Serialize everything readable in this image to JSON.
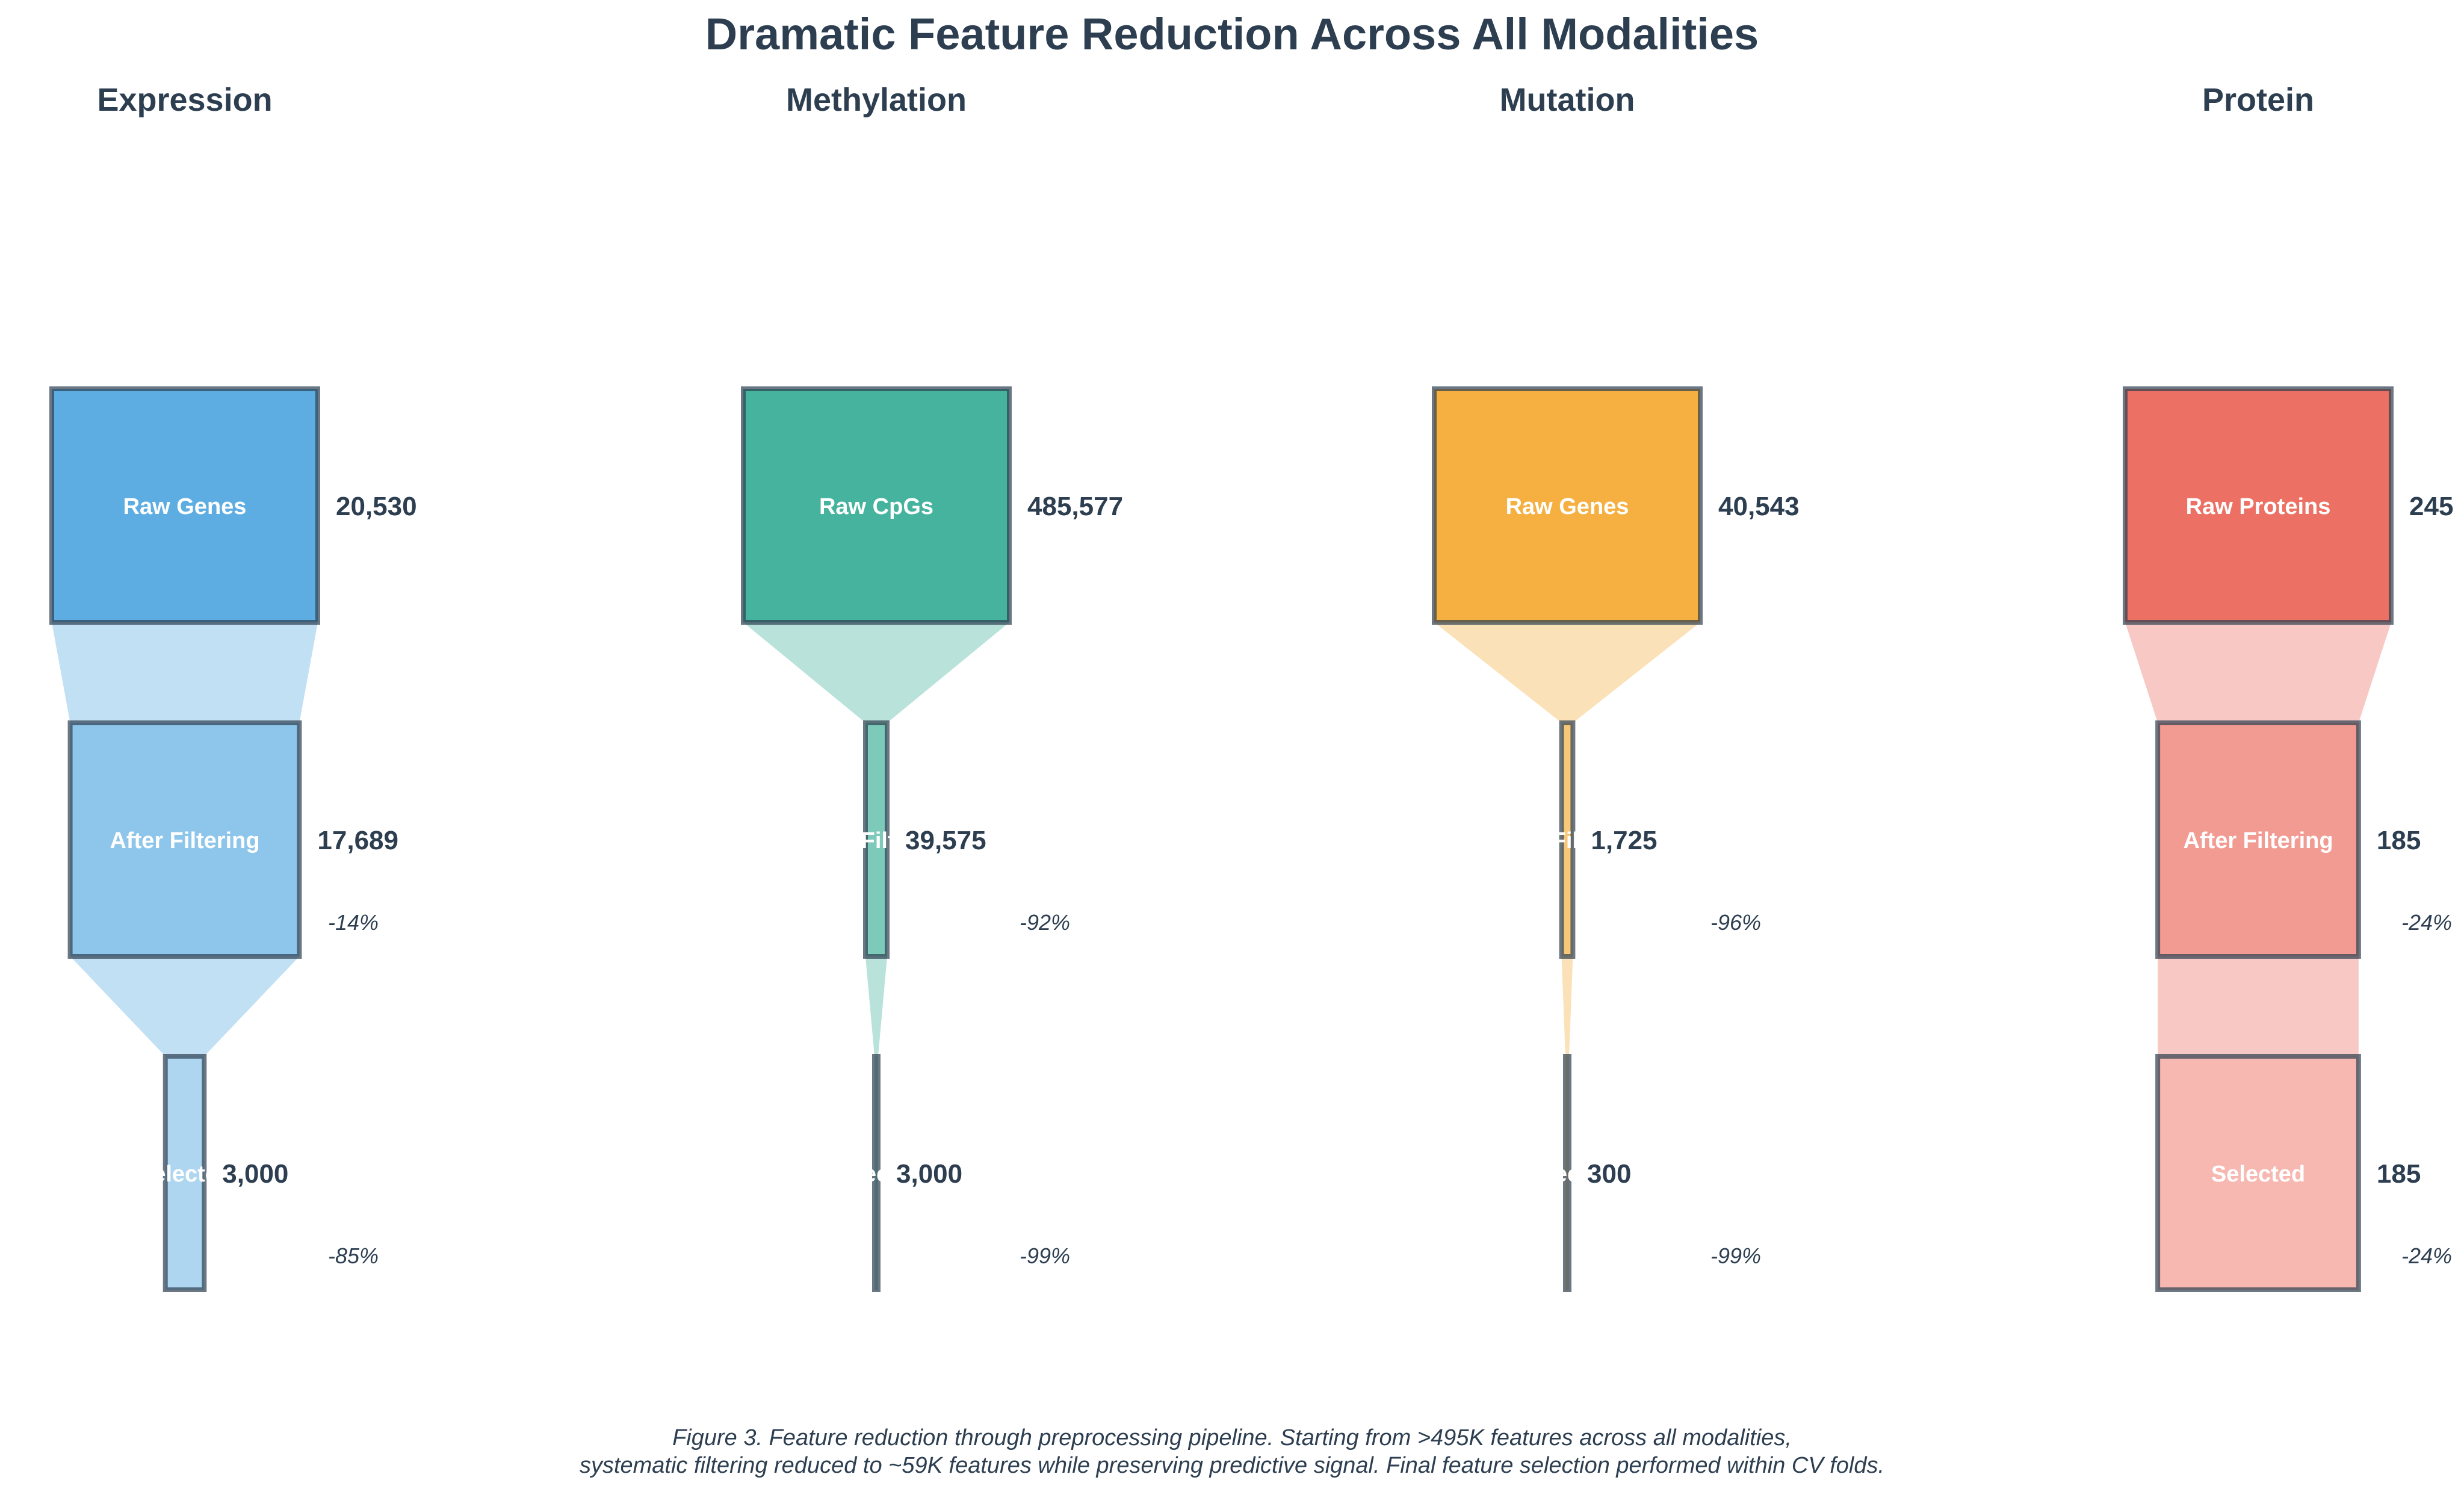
{
  "title": "Dramatic Feature Reduction Across All Modalities",
  "caption": {
    "line1": "Figure 3. Feature reduction through preprocessing pipeline. Starting from >495K features across all modalities,",
    "line2": "systematic filtering reduced to ~59K features while preserving predictive signal. Final feature selection performed within CV folds."
  },
  "chart_data": [
    {
      "type": "funnel",
      "title": "Expression",
      "color": "#5dade2",
      "stages": [
        "Raw Genes",
        "After Filtering",
        "Selected"
      ],
      "values": [
        20530,
        17689,
        3000
      ],
      "value_labels": [
        "20,530",
        "17,689",
        "3,000"
      ],
      "reduction_labels": [
        "-14%",
        "-85%"
      ]
    },
    {
      "type": "funnel",
      "title": "Methylation",
      "color": "#45b39d",
      "stages": [
        "Raw CpGs",
        "After Filtering",
        "Selected"
      ],
      "values": [
        485577,
        39575,
        3000
      ],
      "value_labels": [
        "485,577",
        "39,575",
        "3,000"
      ],
      "reduction_labels": [
        "-92%",
        "-99%"
      ]
    },
    {
      "type": "funnel",
      "title": "Mutation",
      "color": "#f5b041",
      "stages": [
        "Raw Genes",
        "After Filtering",
        "Selected"
      ],
      "values": [
        40543,
        1725,
        300
      ],
      "value_labels": [
        "40,543",
        "1,725",
        "300"
      ],
      "reduction_labels": [
        "-96%",
        "-99%"
      ]
    },
    {
      "type": "funnel",
      "title": "Protein",
      "color": "#ec7063",
      "stages": [
        "Raw Proteins",
        "After Filtering",
        "Selected"
      ],
      "values": [
        245,
        185,
        185
      ],
      "value_labels": [
        "245",
        "185",
        "185"
      ],
      "reduction_labels": [
        "-24%",
        "-24%"
      ]
    }
  ]
}
